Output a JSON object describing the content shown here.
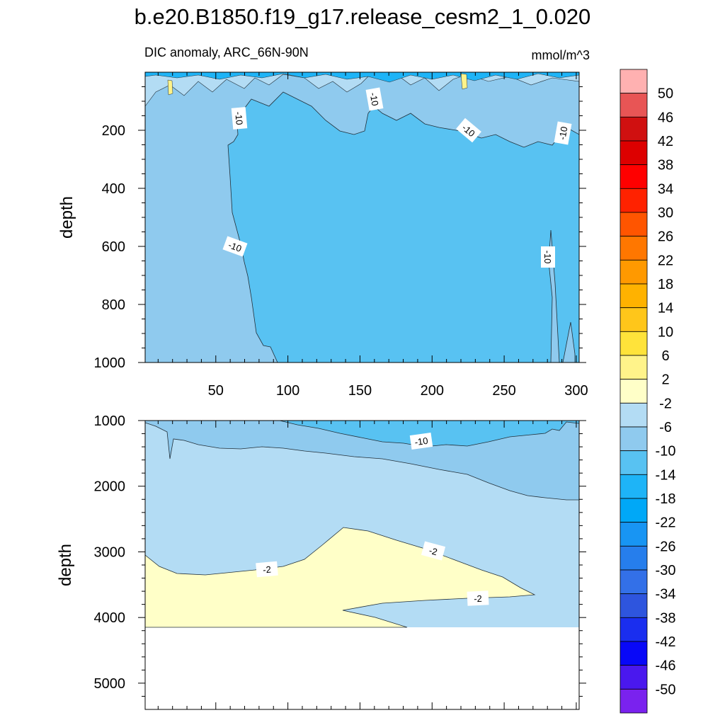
{
  "title": "b.e20.B1850.f19_g17.release_cesm2_1_0.020",
  "subtitle_left": "DIC anomaly, ARC_66N-90N",
  "subtitle_right": "mmol/m^3",
  "chart_data": [
    {
      "type": "contour",
      "panel": "upper",
      "ylabel": "depth",
      "xlim": [
        1,
        302
      ],
      "ylim": [
        1000,
        0
      ],
      "xticks": [
        "50",
        "100",
        "150",
        "200",
        "250",
        "300"
      ],
      "yticks": [
        "200",
        "400",
        "600",
        "800",
        "1000"
      ],
      "contour_labels": [
        "-10",
        "-10",
        "-10",
        "-10",
        "-10",
        "-10"
      ],
      "dominant_range": "-14 to -10",
      "near_surface_range": "-10 to -6"
    },
    {
      "type": "contour",
      "panel": "lower",
      "ylabel": "depth",
      "xlim": [
        1,
        302
      ],
      "ylim": [
        5400,
        1000
      ],
      "yticks": [
        "1000",
        "2000",
        "3000",
        "4000",
        "5000"
      ],
      "contour_labels": [
        "-10",
        "-2",
        "-2",
        "-2"
      ],
      "bottom_of_data_depth": 4120,
      "deep_range": "-2 to 2"
    }
  ],
  "colorbar": {
    "levels": [
      "50",
      "46",
      "42",
      "38",
      "34",
      "30",
      "26",
      "22",
      "18",
      "14",
      "10",
      "6",
      "2",
      "-2",
      "-6",
      "-10",
      "-14",
      "-18",
      "-22",
      "-26",
      "-30",
      "-34",
      "-38",
      "-42",
      "-46",
      "-50"
    ],
    "colors": [
      "#FFB1B1",
      "#E85555",
      "#D01010",
      "#DD0000",
      "#FF0000",
      "#FF2200",
      "#FF5500",
      "#FF7700",
      "#FF9900",
      "#FFB200",
      "#FFC61A",
      "#FFE33A",
      "#FFF38A",
      "#FFFFC8",
      "#B3DCF4",
      "#8FCAEE",
      "#58C2F2",
      "#1EB4F7",
      "#00A8F7",
      "#1895F3",
      "#267EEC",
      "#3370E8",
      "#2E55DE",
      "#1A2EEF",
      "#0808F8",
      "#4A18EE",
      "#7A22EE"
    ]
  }
}
